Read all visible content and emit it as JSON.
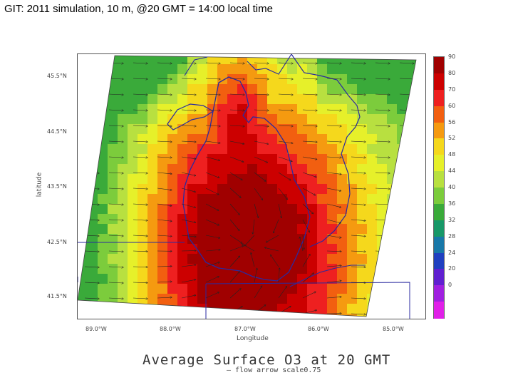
{
  "slide": {
    "title": "GIT: 2011 simulation, 10 m, @20 GMT = 14:00 local time"
  },
  "plot": {
    "title": "Average Surface O3 at 20 GMT",
    "subtitle": "— flow arrow scale0.75",
    "xlabel": "Longitude",
    "ylabel": "latitude",
    "xticks": [
      "89.0°W",
      "88.0°W",
      "87.0°W",
      "86.0°W",
      "85.0°W"
    ],
    "yticks": [
      "45.5°N",
      "44.5°N",
      "43.5°N",
      "42.5°N",
      "41.5°N"
    ]
  },
  "legend": {
    "labels": [
      "90",
      "80",
      "70",
      "60",
      "56",
      "52",
      "48",
      "44",
      "40",
      "36",
      "32",
      "28",
      "24",
      "20",
      "0"
    ],
    "colors": [
      "#a00000",
      "#cc0000",
      "#ee2020",
      "#f25f10",
      "#f59a10",
      "#f5d81c",
      "#e6f02a",
      "#b8e040",
      "#7ccc3c",
      "#3aaa3a",
      "#189868",
      "#1878a8",
      "#2040c0",
      "#6020d0",
      "#a020e0",
      "#e020e8"
    ]
  }
}
